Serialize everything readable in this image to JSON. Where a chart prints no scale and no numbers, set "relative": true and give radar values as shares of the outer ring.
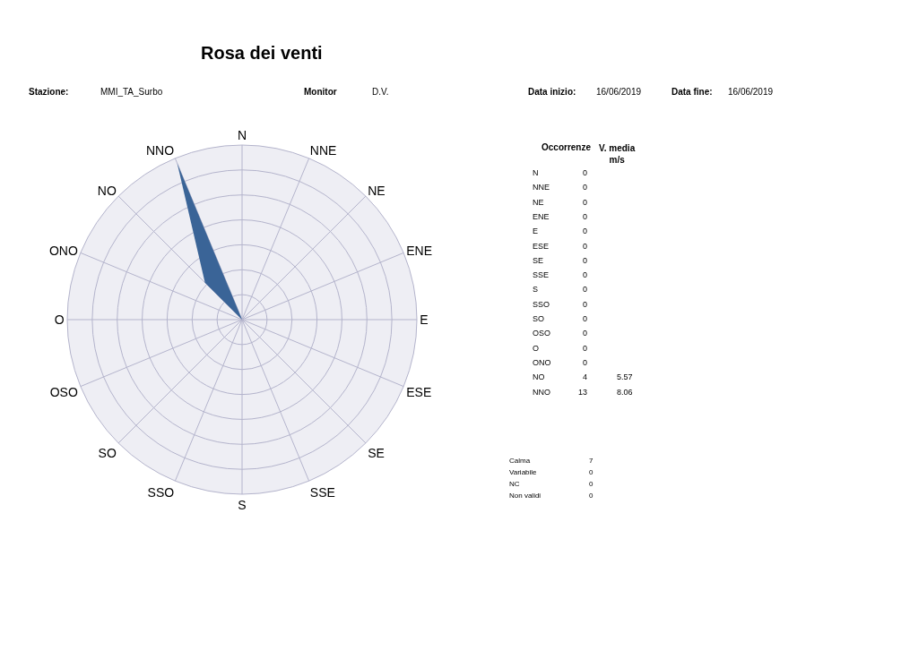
{
  "chart_data": [
    {
      "type": "radar",
      "title": "Rosa dei venti",
      "annotations": [
        "Stazione:",
        "MMI_TA_Surbo",
        "Monitor",
        "D.V.",
        "Data inizio:",
        "16/06/2019",
        "Data fine:",
        "16/06/2019"
      ],
      "categories": [
        "N",
        "NNE",
        "NE",
        "ENE",
        "E",
        "ESE",
        "SE",
        "SSE",
        "S",
        "SSO",
        "SO",
        "OSO",
        "O",
        "ONO",
        "NO",
        "NNO"
      ],
      "color": "#3a6497",
      "values": [
        0,
        0,
        0,
        0,
        0,
        0,
        0,
        0,
        0,
        0,
        0,
        0,
        0,
        0,
        0.3,
        0.97
      ],
      "relative": true,
      "grid": true,
      "marker": "none"
    },
    {
      "type": "other",
      "categories": [
        "N",
        "NNE",
        "NE",
        "ENE",
        "E",
        "ESE",
        "SE",
        "SSE",
        "S",
        "SSO",
        "SO",
        "OSO",
        "O",
        "ONO",
        "NO",
        "NNO"
      ],
      "series": [
        {
          "name": "Occorrenze",
          "values": [
            0,
            0,
            0,
            0,
            0,
            0,
            0,
            0,
            0,
            0,
            0,
            0,
            0,
            0,
            4,
            13
          ]
        },
        {
          "name": "V. media\nm/s",
          "values": [
            null,
            null,
            null,
            null,
            null,
            null,
            null,
            null,
            null,
            null,
            null,
            null,
            null,
            null,
            5.57,
            8.06
          ]
        }
      ],
      "data_labels": true
    },
    {
      "type": "other",
      "categories": [
        "Calma",
        "Variabile",
        "NC",
        "Non validi"
      ],
      "values": [
        7,
        0,
        0,
        0
      ],
      "data_labels": true
    }
  ]
}
